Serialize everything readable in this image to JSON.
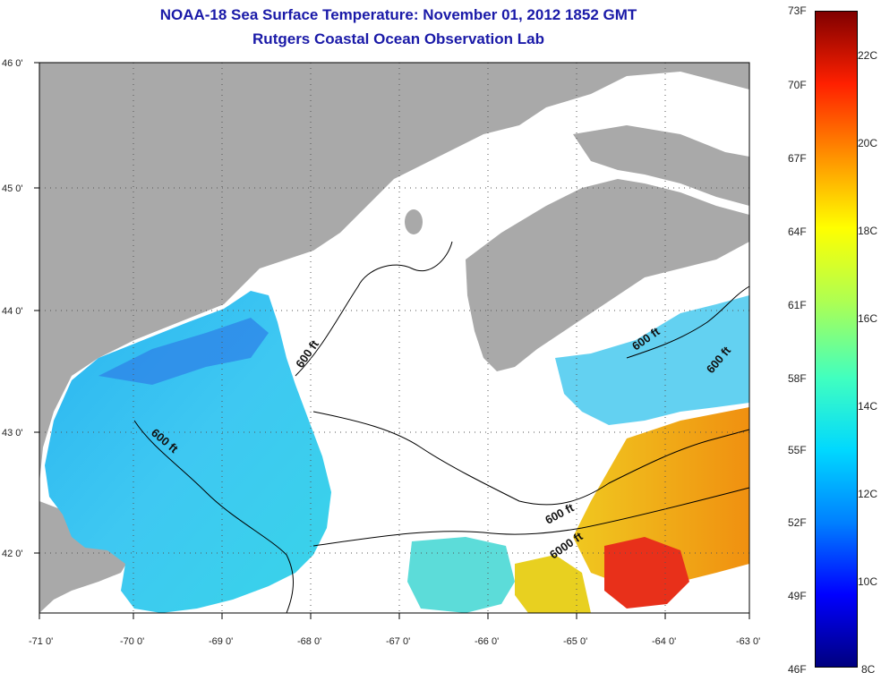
{
  "header": {
    "title": "NOAA-18 Sea Surface Temperature:  November 01, 2012 1852 GMT",
    "subtitle": "Rutgers Coastal Ocean Observation Lab"
  },
  "map": {
    "lat_labels": [
      "46 0'",
      "45 0'",
      "44 0'",
      "43 0'",
      "42 0'"
    ],
    "lon_labels": [
      "-71 0'",
      "-70 0'",
      "-69 0'",
      "-68 0'",
      "-67 0'",
      "-66 0'",
      "-65 0'",
      "-64 0'",
      "-63 0'"
    ],
    "contour_labels": [
      "600 ft",
      "600 ft",
      "600 ft",
      "600 ft",
      "600 ft",
      "6000 ft"
    ],
    "colors": {
      "land": "#a9a9a9",
      "ocean_cloud": "#ffffff"
    }
  },
  "colorbar": {
    "fahrenheit_labels": [
      "73F",
      "70F",
      "67F",
      "64F",
      "61F",
      "58F",
      "55F",
      "52F",
      "49F",
      "46F"
    ],
    "celsius_labels": [
      "22C",
      "20C",
      "18C",
      "16C",
      "14C",
      "12C",
      "10C",
      "8C"
    ],
    "colors": [
      "#00007f",
      "#0000ff",
      "#0080ff",
      "#00d8ff",
      "#40ffc0",
      "#b0ff50",
      "#ffff00",
      "#ff9000",
      "#ff2000",
      "#800000"
    ]
  }
}
